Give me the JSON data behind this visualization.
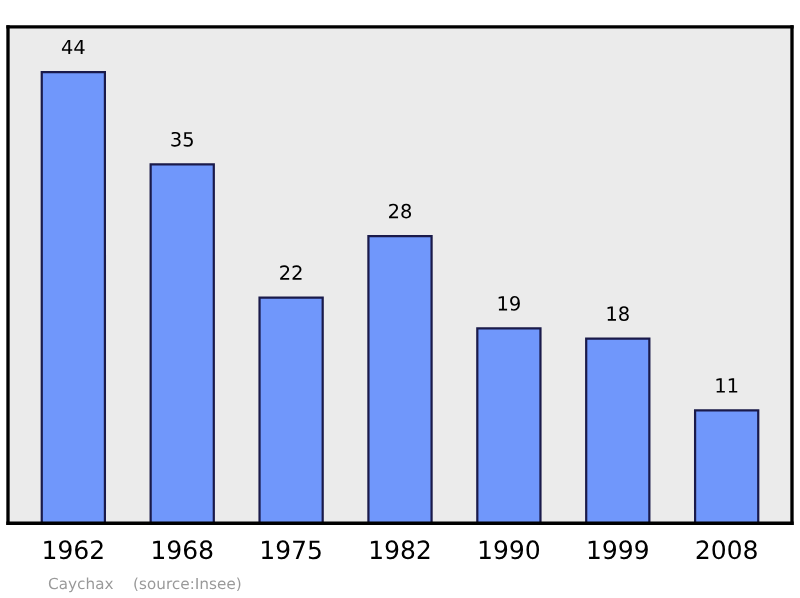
{
  "chart_data": {
    "type": "bar",
    "categories": [
      "1962",
      "1968",
      "1975",
      "1982",
      "1990",
      "1999",
      "2008"
    ],
    "values": [
      44,
      35,
      22,
      28,
      19,
      18,
      11
    ],
    "color": "#7097fb",
    "ylim": [
      0,
      48.4
    ],
    "data_labels": true,
    "tick_labels": "x",
    "grid": false,
    "annotations": [
      "Caychax    (source:Insee)"
    ]
  }
}
